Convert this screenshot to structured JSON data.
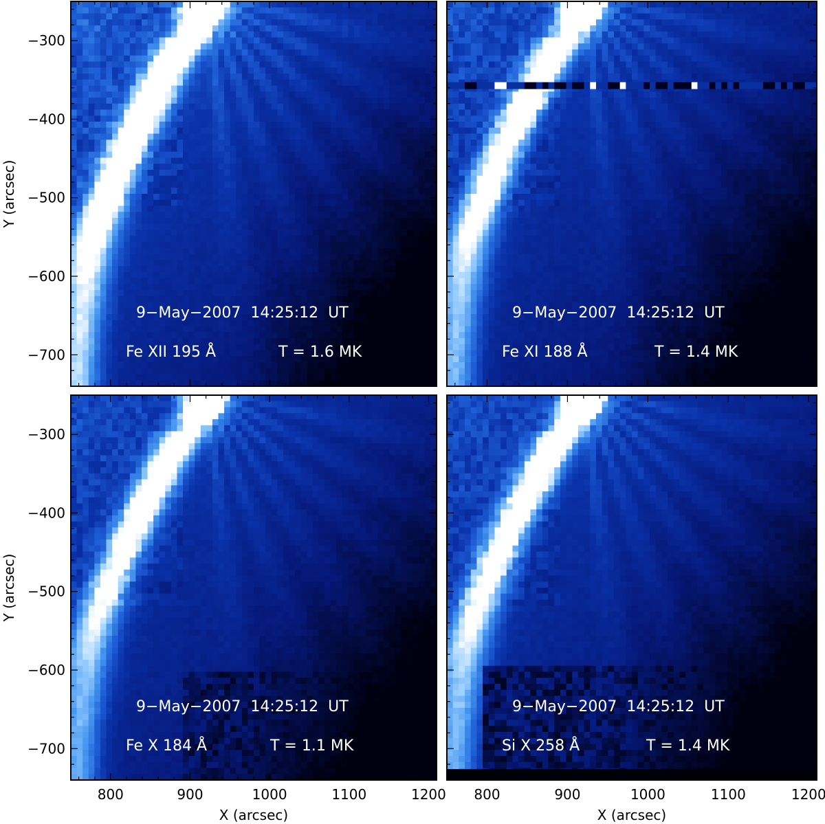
{
  "figure": {
    "x_axis_label": "X (arcsec)",
    "y_axis_label": "Y (arcsec)",
    "x_ticks": [
      "800",
      "900",
      "1000",
      "1100",
      "1200"
    ],
    "y_ticks": [
      "−300",
      "−400",
      "−500",
      "−600",
      "−700"
    ],
    "x_range_arcsec": [
      750,
      1210
    ],
    "y_range_arcsec": [
      -740,
      -250
    ],
    "colormap": "blue",
    "colors": {
      "dark": "#000010",
      "mid": "#0a2fa0",
      "light": "#3f8fef",
      "bright": "#ffffff"
    }
  },
  "panels": [
    {
      "id": "fe12",
      "timestamp": "9−May−2007  14:25:12  UT",
      "line": "Fe XII 195 Å",
      "temperature": "T = 1.6 MK",
      "brightness": 1.0,
      "artifact": "none"
    },
    {
      "id": "fe11",
      "timestamp": "9−May−2007  14:25:12  UT",
      "line": "Fe XI 188 Å",
      "temperature": "T = 1.4 MK",
      "brightness": 0.92,
      "artifact": "horizontal-band"
    },
    {
      "id": "fe10",
      "timestamp": "9−May−2007  14:25:12  UT",
      "line": "Fe X 184 Å",
      "temperature": "T = 1.1 MK",
      "brightness": 0.88,
      "artifact": "noise-bottom-right"
    },
    {
      "id": "si10",
      "timestamp": "9−May−2007  14:25:12  UT",
      "line": "Si X 258 Å",
      "temperature": "T = 1.4 MK",
      "brightness": 0.9,
      "artifact": "noise-bottom"
    }
  ]
}
